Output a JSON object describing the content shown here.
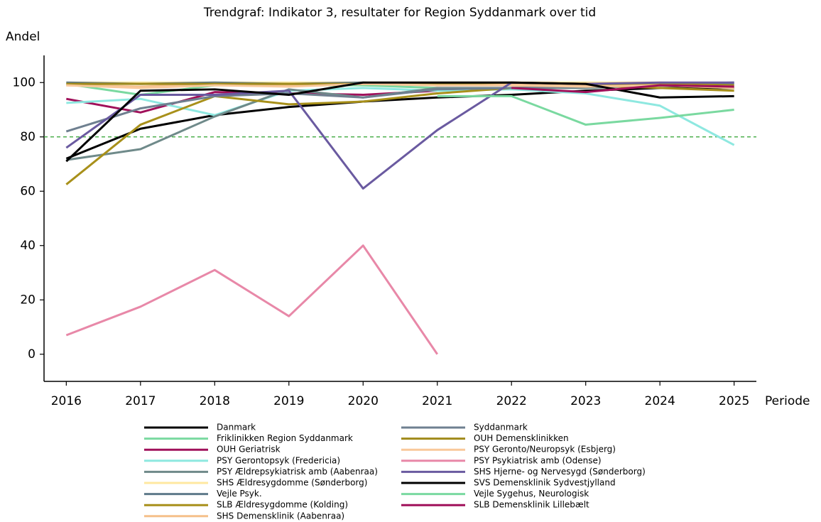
{
  "chart_data": {
    "type": "line",
    "title": "Trendgraf: Indikator 3, resultater for Region Syddanmark over tid",
    "ylabel": "Andel",
    "xlabel": "Periode",
    "x": [
      2016,
      2017,
      2018,
      2019,
      2020,
      2021,
      2022,
      2023,
      2024,
      2025
    ],
    "xlim": [
      2015.7,
      2025.3
    ],
    "xticks": [
      2016,
      2017,
      2018,
      2019,
      2020,
      2021,
      2022,
      2023,
      2024,
      2025
    ],
    "ylim": [
      -10,
      110
    ],
    "yticks": [
      0,
      20,
      40,
      60,
      80,
      100
    ],
    "hline": {
      "value": 80,
      "color": "#2ca02c"
    },
    "legend": "bottom",
    "series": [
      {
        "name": "Danmark",
        "color": "#000000",
        "values": [
          72,
          83,
          88,
          91,
          93,
          94.5,
          95.5,
          97,
          98,
          98
        ]
      },
      {
        "name": "Friklinikken Region Syddanmark",
        "color": "#7ad9a0",
        "values": [
          99.5,
          95.5,
          99,
          99,
          99,
          98,
          null,
          null,
          null,
          null
        ]
      },
      {
        "name": "OUH Geriatrisk",
        "color": "#a0105a",
        "values": [
          94,
          89,
          96.5,
          96,
          95.5,
          97,
          null,
          null,
          null,
          null
        ]
      },
      {
        "name": "PSY Gerontopsyk (Fredericia)",
        "color": "#8ee8e0",
        "values": [
          92.5,
          94,
          88,
          97,
          98,
          97,
          97.5,
          96,
          91.5,
          77
        ]
      },
      {
        "name": "PSY Ældrepsykiatrisk amb (Aabenraa)",
        "color": "#6f8a8a",
        "values": [
          71.5,
          75.5,
          87.5,
          97.5,
          94.5,
          98,
          98,
          98,
          99,
          98
        ]
      },
      {
        "name": "SHS Ældresygdomme (Sønderborg)",
        "color": "#ffe8a0",
        "values": [
          100,
          100,
          100,
          100,
          100,
          100,
          100,
          100,
          100,
          99.5
        ]
      },
      {
        "name": "Vejle Psyk.",
        "color": "#5e7a8a",
        "values": [
          100,
          99.5,
          100,
          99.5,
          100,
          99,
          99,
          99,
          99.5,
          100
        ]
      },
      {
        "name": "SLB Ældresygdomme (Kolding)",
        "color": "#a8901a",
        "values": [
          62.5,
          84.5,
          95,
          92,
          93,
          96,
          98,
          99,
          98,
          97
        ]
      },
      {
        "name": "SHS Demensklinik (Aabenraa)",
        "color": "#f5c08a",
        "values": [
          99,
          98.5,
          99.5,
          99,
          99.5,
          99,
          99.5,
          99,
          99,
          98
        ]
      },
      {
        "name": "Syddanmark",
        "color": "#6f8090",
        "values": [
          82,
          90.5,
          95,
          96,
          94.5,
          97.5,
          98,
          98.5,
          99,
          99.5
        ]
      },
      {
        "name": "OUH Demensklinikken",
        "color": "#a08a1a",
        "values": [
          99.5,
          99.5,
          99.5,
          99.5,
          99.5,
          99.5,
          100,
          99.5,
          99.5,
          99
        ]
      },
      {
        "name": "PSY Geronto/Neuropsyk  (Esbjerg)",
        "color": "#f9c89a",
        "values": [
          99,
          98,
          99,
          98.5,
          99.5,
          99,
          99,
          98.5,
          99,
          98.5
        ]
      },
      {
        "name": "PSY Psykiatrisk amb (Odense)",
        "color": "#e888a8",
        "values": [
          7,
          17.5,
          31,
          14,
          40,
          0,
          null,
          null,
          null,
          null
        ]
      },
      {
        "name": "SHS Hjerne- og Nervesygd (Sønderborg)",
        "color": "#6a5aa0",
        "values": [
          76,
          95.5,
          95.5,
          97,
          61,
          82.5,
          100,
          99.5,
          100,
          100
        ]
      },
      {
        "name": "SVS Demensklinik Sydvestjylland",
        "color": "#000000",
        "values": [
          71,
          97,
          97.5,
          95.5,
          100,
          100,
          100,
          99.5,
          94.5,
          95
        ]
      },
      {
        "name": "Vejle Sygehus, Neurologisk",
        "color": "#7ad9a0",
        "values": [
          null,
          null,
          null,
          null,
          null,
          95,
          95,
          84.5,
          87,
          90
        ]
      },
      {
        "name": "SLB Demensklinik Lillebælt",
        "color": "#a0105a",
        "values": [
          null,
          null,
          null,
          null,
          null,
          null,
          98,
          96.5,
          99,
          98.5
        ]
      }
    ]
  }
}
